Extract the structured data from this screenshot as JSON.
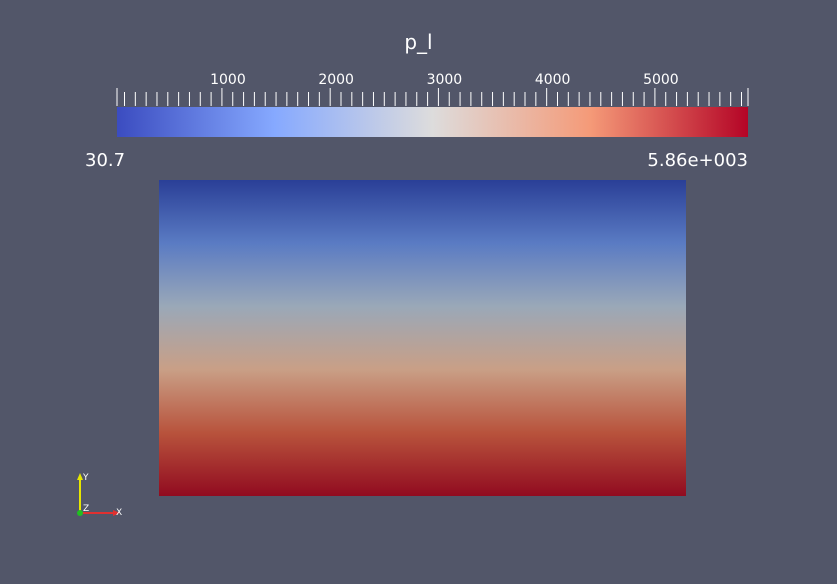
{
  "colorbar": {
    "title": "p_l",
    "range_min_label": "30.7",
    "range_max_label": "5.86e+003",
    "range": [
      30.7,
      5860
    ],
    "tick_labels": [
      "1000",
      "2000",
      "3000",
      "4000",
      "5000"
    ],
    "tick_values": [
      1000,
      2000,
      3000,
      4000,
      5000
    ],
    "colormap": "cool-to-warm",
    "colors": [
      "#3b4cc0",
      "#86a9ff",
      "#dddcdc",
      "#f59a78",
      "#b40426"
    ]
  },
  "mesh": {
    "gradient_colors": [
      "#2a3f97",
      "#5a7bc3",
      "#9aa8b8",
      "#c99f86",
      "#b8533c",
      "#910b20"
    ],
    "direction": "top-to-bottom (low to high)"
  },
  "axes": {
    "x_label": "X",
    "y_label": "Y",
    "z_label": "Z",
    "x_color": "#e03030",
    "y_color": "#e6e600",
    "z_color": "#20c020"
  },
  "background_color": "#525669"
}
